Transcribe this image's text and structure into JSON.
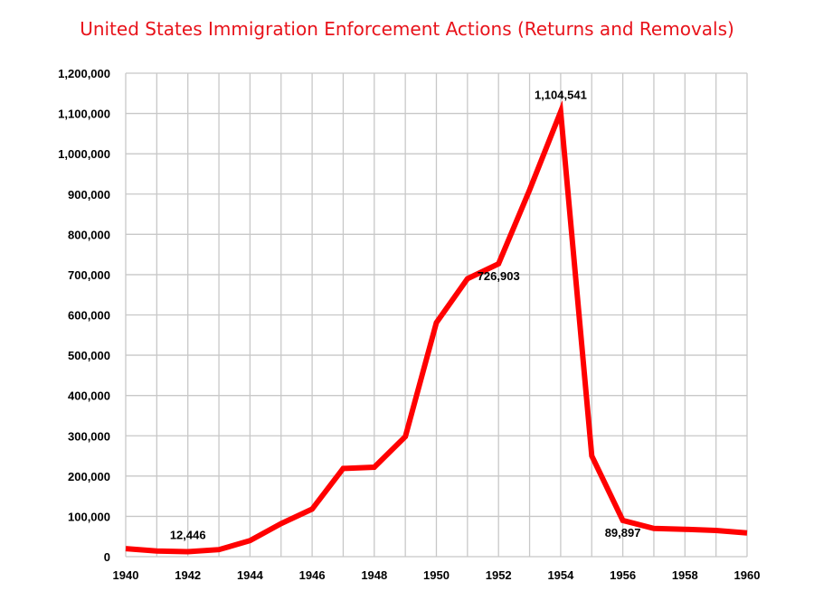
{
  "colors": {
    "series": "#ff0000",
    "title": "#e8131b",
    "grid": "#c8c8c8",
    "text": "#000000"
  },
  "chart_data": {
    "type": "line",
    "title": "United States Immigration Enforcement Actions (Returns and Removals)",
    "xlabel": "",
    "ylabel": "",
    "xlim": [
      1940,
      1960
    ],
    "ylim": [
      0,
      1200000
    ],
    "x_ticks": [
      1940,
      1942,
      1944,
      1946,
      1948,
      1950,
      1952,
      1954,
      1956,
      1958,
      1960
    ],
    "x_tick_labels": [
      "1940",
      "1942",
      "1944",
      "1946",
      "1948",
      "1950",
      "1952",
      "1954",
      "1956",
      "1958",
      "1960"
    ],
    "y_ticks": [
      0,
      100000,
      200000,
      300000,
      400000,
      500000,
      600000,
      700000,
      800000,
      900000,
      1000000,
      1100000,
      1200000
    ],
    "y_tick_labels": [
      "0",
      "100,000",
      "200,000",
      "300,000",
      "400,000",
      "500,000",
      "600,000",
      "700,000",
      "800,000",
      "900,000",
      "1,000,000",
      "1,100,000",
      "1,200,000"
    ],
    "grid": true,
    "legend": false,
    "series": [
      {
        "name": "Returns and Removals",
        "x": [
          1940,
          1941,
          1942,
          1943,
          1944,
          1945,
          1946,
          1947,
          1948,
          1949,
          1950,
          1951,
          1952,
          1953,
          1954,
          1955,
          1956,
          1957,
          1958,
          1959,
          1960
        ],
        "values": [
          20000,
          14000,
          12446,
          17500,
          40000,
          82000,
          118000,
          219000,
          222000,
          298000,
          581000,
          690000,
          726903,
          910000,
          1104541,
          250000,
          89897,
          70000,
          68000,
          65000,
          59000
        ]
      }
    ],
    "annotations": [
      {
        "text": "12,446",
        "x": 1942,
        "y": 12446,
        "anchor": "above"
      },
      {
        "text": "726,903",
        "x": 1952,
        "y": 726903,
        "anchor": "below"
      },
      {
        "text": "1,104,541",
        "x": 1954,
        "y": 1104541,
        "anchor": "above"
      },
      {
        "text": "89,897",
        "x": 1956,
        "y": 89897,
        "anchor": "below"
      }
    ]
  }
}
